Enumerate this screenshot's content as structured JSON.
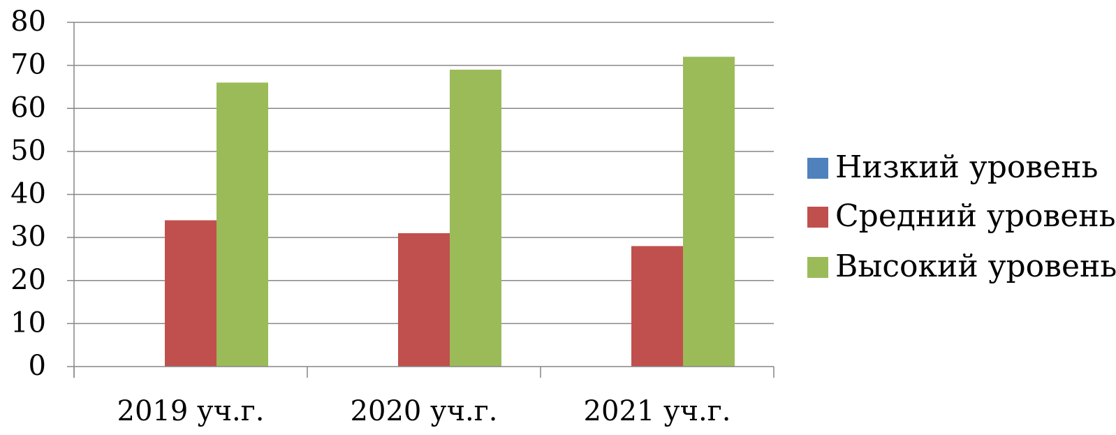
{
  "chart_data": {
    "type": "bar",
    "categories": [
      "2019 уч.г.",
      "2020 уч.г.",
      "2021 уч.г."
    ],
    "series": [
      {
        "name": "Низкий уровень",
        "color": "#4F81BD",
        "values": [
          0,
          0,
          0
        ]
      },
      {
        "name": "Средний уровень",
        "color": "#C0504D",
        "values": [
          34,
          31,
          28
        ]
      },
      {
        "name": "Высокий уровень",
        "color": "#9BBB59",
        "values": [
          66,
          69,
          72
        ]
      }
    ],
    "ylim": [
      0,
      80
    ],
    "yticks": [
      0,
      10,
      20,
      30,
      40,
      50,
      60,
      70,
      80
    ],
    "grid": true,
    "legend_position": "right",
    "title": "",
    "xlabel": "",
    "ylabel": ""
  }
}
